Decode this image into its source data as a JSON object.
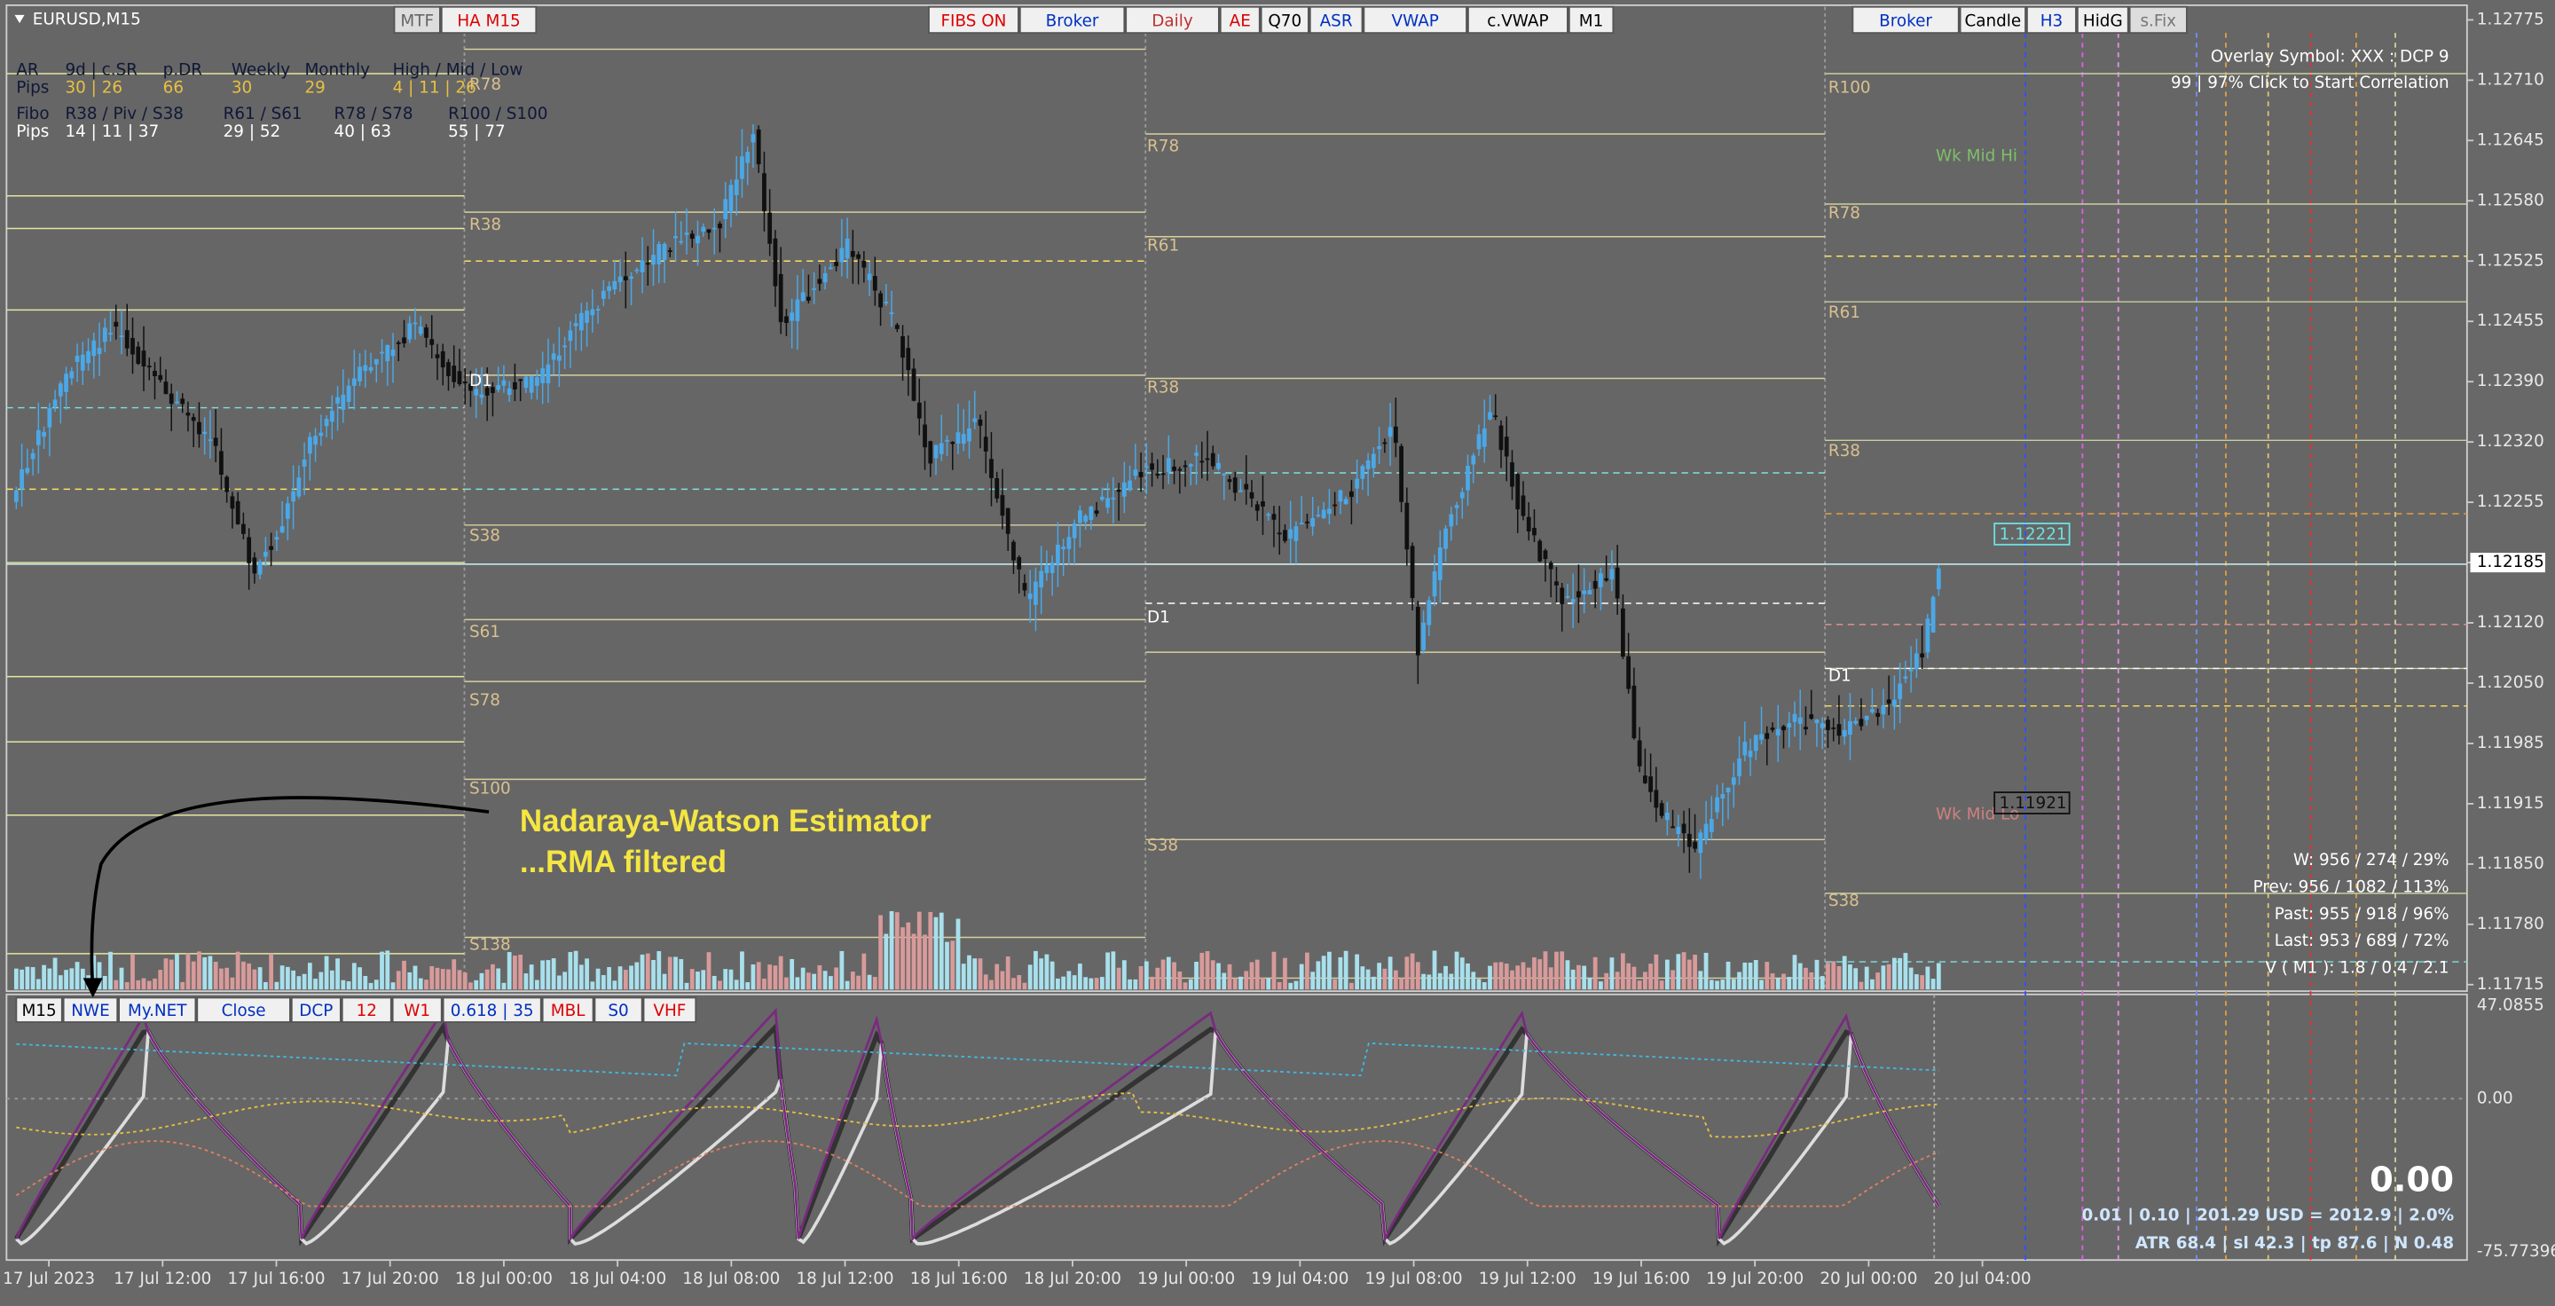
{
  "symbol": "EURUSD,M15",
  "toolbar_left": [
    "MTF",
    "HA M15"
  ],
  "toolbar_center": [
    "FIBS ON",
    "Broker",
    "Daily",
    "AE",
    "Q70",
    "ASR",
    "VWAP",
    "c.VWAP",
    "M1"
  ],
  "toolbar_right": [
    "Broker",
    "Candle",
    "H3",
    "HidG",
    "s.Fix"
  ],
  "stats_table": {
    "rows": [
      [
        "AR",
        "9d | c.SR",
        "p.DR",
        "Weekly",
        "Monthly",
        "High / Mid / Low"
      ],
      [
        "Pips",
        "30 | 26",
        "66",
        "30",
        "29",
        "4 | 11 | 26"
      ],
      [
        "Fibo",
        "R38 / Piv / S38",
        "R61 / S61",
        "R78 / S78",
        "R100 / S100"
      ],
      [
        "Pips",
        "14 | 11 | 37",
        "29 | 52",
        "40 | 63",
        "55 | 77"
      ]
    ]
  },
  "overlay": [
    "Overlay Symbol: XXX : DCP 9",
    "99 | 97% Click to Start Correlation"
  ],
  "price_axis": [
    "1.12775",
    "1.12710",
    "1.12645",
    "1.12580",
    "1.12525",
    "1.12455",
    "1.12390",
    "1.12320",
    "1.12255",
    "1.12185",
    "1.12120",
    "1.12050",
    "1.11985",
    "1.11915",
    "1.11850",
    "1.11780",
    "1.11715"
  ],
  "time_axis": [
    "17 Jul 2023",
    "17 Jul 12:00",
    "17 Jul 16:00",
    "17 Jul 20:00",
    "18 Jul 00:00",
    "18 Jul 04:00",
    "18 Jul 08:00",
    "18 Jul 12:00",
    "18 Jul 16:00",
    "18 Jul 20:00",
    "19 Jul 00:00",
    "19 Jul 04:00",
    "19 Jul 08:00",
    "19 Jul 12:00",
    "19 Jul 16:00",
    "19 Jul 20:00",
    "20 Jul 00:00",
    "20 Jul 04:00"
  ],
  "level_labels": [
    "R78",
    "R38",
    "D1",
    "S38",
    "S61",
    "S78",
    "S100",
    "S138",
    "R78",
    "R61",
    "R38",
    "D1",
    "S38",
    "R100",
    "R78",
    "R61",
    "R38",
    "D1",
    "S38"
  ],
  "week_labels": [
    "Wk Mid Hi",
    "Wk Mid Lo"
  ],
  "price_tags": [
    "1.12221",
    "1.11921"
  ],
  "annotation": [
    "Nadaraya-Watson Estimator",
    "...RMA filtered"
  ],
  "stats_right": [
    "W: 956 / 274 / 29%",
    "Prev: 956 / 1082 / 113%",
    "Past: 955 / 918 / 96%",
    "Last: 953 / 689 / 72%",
    "V ( M1 ): 1.8 / 0.4 / 2.1"
  ],
  "indicator_toolbar": [
    "M15",
    "NWE",
    "My.NET",
    "Close",
    "DCP",
    "12",
    "W1",
    "0.618 | 35",
    "MBL",
    "S0",
    "VHF"
  ],
  "indicator_axis": [
    "47.0855",
    "0.00",
    "-75.77396"
  ],
  "big_value": "0.00",
  "footer_lines": [
    "0.01  |  0.10  |  201.29 USD = 2012.9  |  2.0%",
    "ATR 68.4  |  sl 42.3  |  tp 87.6  |  N 0.48"
  ]
}
